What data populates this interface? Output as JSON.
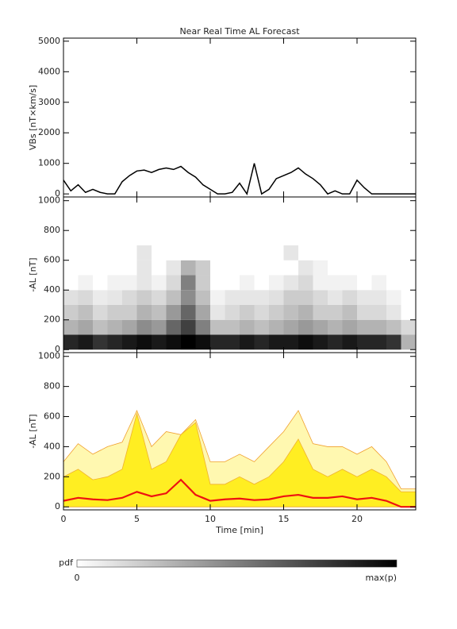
{
  "chart_data": [
    {
      "type": "line",
      "title": "Near Real Time AL Forecast",
      "ylabel": "VBs [nT×km/s]",
      "x": [
        0,
        0.5,
        1,
        1.5,
        2,
        2.5,
        3,
        3.5,
        4,
        4.5,
        5,
        5.5,
        6,
        6.5,
        7,
        7.5,
        8,
        8.5,
        9,
        9.5,
        10,
        10.5,
        11,
        11.5,
        12,
        12.5,
        13,
        13.5,
        14,
        14.5,
        15,
        15.5,
        16,
        16.5,
        17,
        17.5,
        18,
        18.5,
        19,
        19.5,
        20,
        20.5,
        21,
        21.5,
        22,
        22.5,
        23,
        23.5,
        24
      ],
      "series": [
        {
          "color": "#000000",
          "values": [
            450,
            100,
            300,
            50,
            150,
            50,
            0,
            0,
            400,
            600,
            750,
            780,
            700,
            800,
            850,
            800,
            900,
            700,
            550,
            300,
            150,
            0,
            0,
            50,
            350,
            0,
            1000,
            0,
            150,
            500,
            600,
            700,
            850,
            650,
            500,
            300,
            0,
            100,
            0,
            0,
            450,
            200,
            0,
            0,
            0,
            0,
            0,
            0,
            0
          ]
        }
      ],
      "xlim": [
        0,
        24
      ],
      "xticks": [
        0,
        5,
        10,
        15,
        20
      ],
      "ylim": [
        -100,
        5100
      ],
      "yticks": [
        0,
        1000,
        2000,
        3000,
        4000,
        5000
      ]
    },
    {
      "type": "heatmap",
      "ylabel": "-AL [nT]",
      "x_bins": [
        0,
        1,
        2,
        3,
        4,
        5,
        6,
        7,
        8,
        9,
        10,
        11,
        12,
        13,
        14,
        15,
        16,
        17,
        18,
        19,
        20,
        21,
        22,
        23,
        24
      ],
      "y_bins": [
        0,
        100,
        200,
        300,
        400,
        500,
        600,
        700
      ],
      "z": [
        [
          0.85,
          0.9,
          0.8,
          0.85,
          0.9,
          0.95,
          0.9,
          0.95,
          1.0,
          0.95,
          0.85,
          0.85,
          0.9,
          0.85,
          0.9,
          0.9,
          0.95,
          0.9,
          0.85,
          0.9,
          0.85,
          0.85,
          0.8,
          0.3
        ],
        [
          0.3,
          0.35,
          0.25,
          0.3,
          0.35,
          0.45,
          0.4,
          0.6,
          0.75,
          0.5,
          0.25,
          0.25,
          0.3,
          0.25,
          0.3,
          0.35,
          0.4,
          0.35,
          0.3,
          0.35,
          0.3,
          0.3,
          0.25,
          0.15
        ],
        [
          0.2,
          0.25,
          0.15,
          0.2,
          0.2,
          0.3,
          0.25,
          0.4,
          0.6,
          0.35,
          0.1,
          0.15,
          0.2,
          0.15,
          0.2,
          0.25,
          0.3,
          0.2,
          0.2,
          0.25,
          0.15,
          0.15,
          0.1,
          0
        ],
        [
          0.12,
          0.15,
          0.08,
          0.1,
          0.15,
          0.2,
          0.15,
          0.25,
          0.45,
          0.25,
          0.05,
          0.1,
          0.1,
          0.1,
          0.12,
          0.2,
          0.2,
          0.15,
          0.1,
          0.15,
          0.1,
          0.1,
          0.05,
          0
        ],
        [
          0,
          0.05,
          0,
          0.05,
          0.05,
          0.1,
          0.05,
          0.15,
          0.5,
          0.2,
          0,
          0,
          0.05,
          0,
          0.05,
          0.1,
          0.15,
          0.05,
          0.05,
          0.05,
          0,
          0.05,
          0,
          0
        ],
        [
          0,
          0,
          0,
          0,
          0,
          0.1,
          0,
          0.1,
          0.3,
          0.2,
          0,
          0,
          0,
          0,
          0,
          0,
          0.1,
          0.05,
          0,
          0,
          0,
          0,
          0,
          0
        ],
        [
          0,
          0,
          0,
          0,
          0,
          0.1,
          0,
          0,
          0,
          0,
          0,
          0,
          0,
          0,
          0,
          0.1,
          0,
          0,
          0,
          0,
          0,
          0,
          0,
          0
        ]
      ],
      "xlim": [
        0,
        24
      ],
      "xticks": [
        0,
        5,
        10,
        15,
        20
      ],
      "ylim": [
        -20,
        1025
      ],
      "yticks": [
        0,
        200,
        400,
        600,
        800,
        1000
      ]
    },
    {
      "type": "band",
      "ylabel": "-AL [nT]",
      "xlabel": "Time [min]",
      "x": [
        0,
        1,
        2,
        3,
        4,
        5,
        6,
        7,
        8,
        9,
        10,
        11,
        12,
        13,
        14,
        15,
        16,
        17,
        18,
        19,
        20,
        21,
        22,
        23,
        24
      ],
      "series": [
        {
          "color": "#fff8b0",
          "edge": "#f0a030",
          "style": "fill",
          "values": [
            300,
            420,
            350,
            400,
            430,
            640,
            400,
            500,
            480,
            580,
            300,
            300,
            350,
            300,
            400,
            500,
            640,
            420,
            400,
            400,
            350,
            400,
            300,
            120,
            120
          ]
        },
        {
          "color": "#ffee22",
          "edge": "#f0b030",
          "style": "fill",
          "values": [
            200,
            250,
            180,
            200,
            250,
            620,
            250,
            300,
            480,
            560,
            150,
            150,
            200,
            150,
            200,
            300,
            450,
            250,
            200,
            250,
            200,
            250,
            200,
            100,
            100
          ]
        },
        {
          "color": "#ee1111",
          "style": "line",
          "values": [
            40,
            60,
            50,
            45,
            60,
            100,
            70,
            90,
            180,
            80,
            40,
            50,
            55,
            45,
            50,
            70,
            80,
            60,
            60,
            70,
            50,
            60,
            40,
            0,
            0
          ]
        }
      ],
      "xlim": [
        0,
        24
      ],
      "xticks": [
        0,
        5,
        10,
        15,
        20
      ],
      "ylim": [
        -20,
        1025
      ],
      "yticks": [
        0,
        200,
        400,
        600,
        800,
        1000
      ]
    }
  ],
  "colorbar": {
    "label": "pdf",
    "min_label": "0",
    "max_label": "max(p)"
  }
}
